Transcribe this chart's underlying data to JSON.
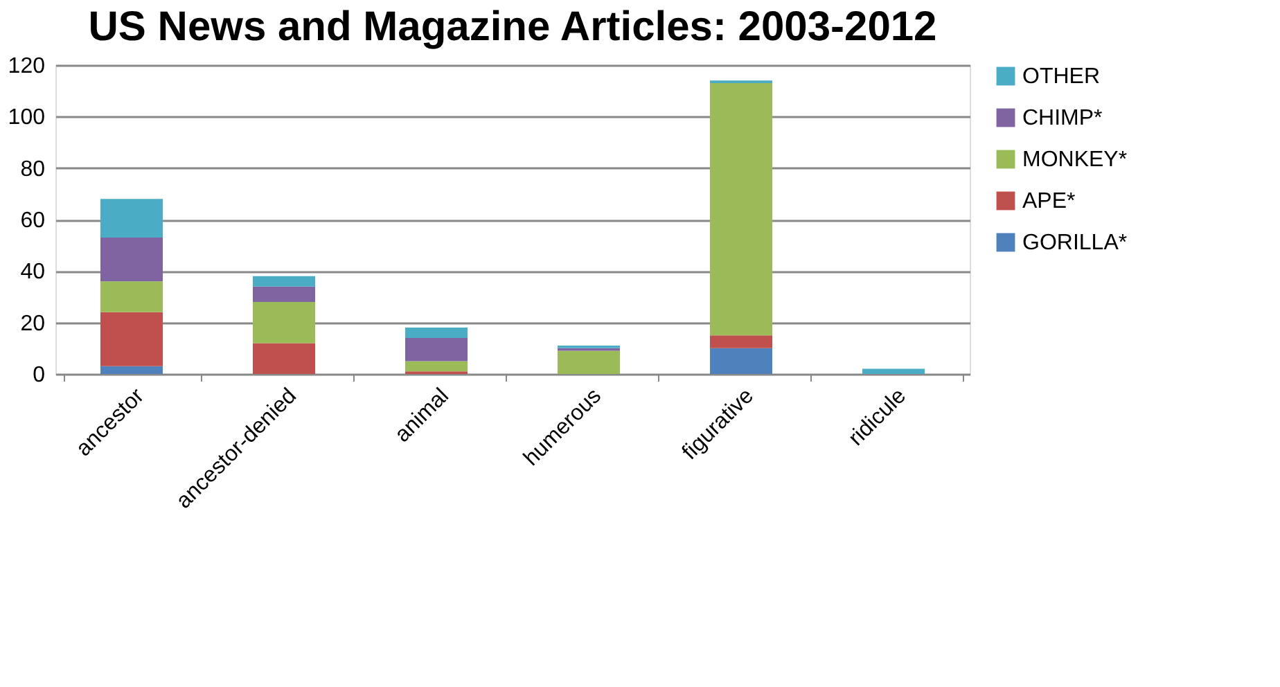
{
  "chart_data": {
    "type": "bar",
    "title": "US News and Magazine Articles: 2003-2012",
    "categories": [
      "ancestor",
      "ancestor-denied",
      "animal",
      "humerous",
      "figurative",
      "ridicule"
    ],
    "stacked": true,
    "series": [
      {
        "name": "GORILLA*",
        "color": "#4f81bd",
        "values": [
          3,
          0,
          0,
          0,
          10,
          0
        ]
      },
      {
        "name": "APE*",
        "color": "#c0504d",
        "values": [
          21,
          12,
          1,
          0,
          5,
          0
        ]
      },
      {
        "name": "MONKEY*",
        "color": "#9bbb59",
        "values": [
          12,
          16,
          4,
          9,
          98,
          0
        ]
      },
      {
        "name": "CHIMP*",
        "color": "#8064a2",
        "values": [
          17,
          6,
          9,
          1,
          0,
          0
        ]
      },
      {
        "name": "OTHER",
        "color": "#4bacc6",
        "values": [
          15,
          4,
          4,
          1,
          1,
          2
        ]
      }
    ],
    "ylim": [
      0,
      120
    ],
    "yticks": [
      0,
      20,
      40,
      60,
      80,
      100,
      120
    ],
    "grid": "y",
    "legend": "top right"
  }
}
